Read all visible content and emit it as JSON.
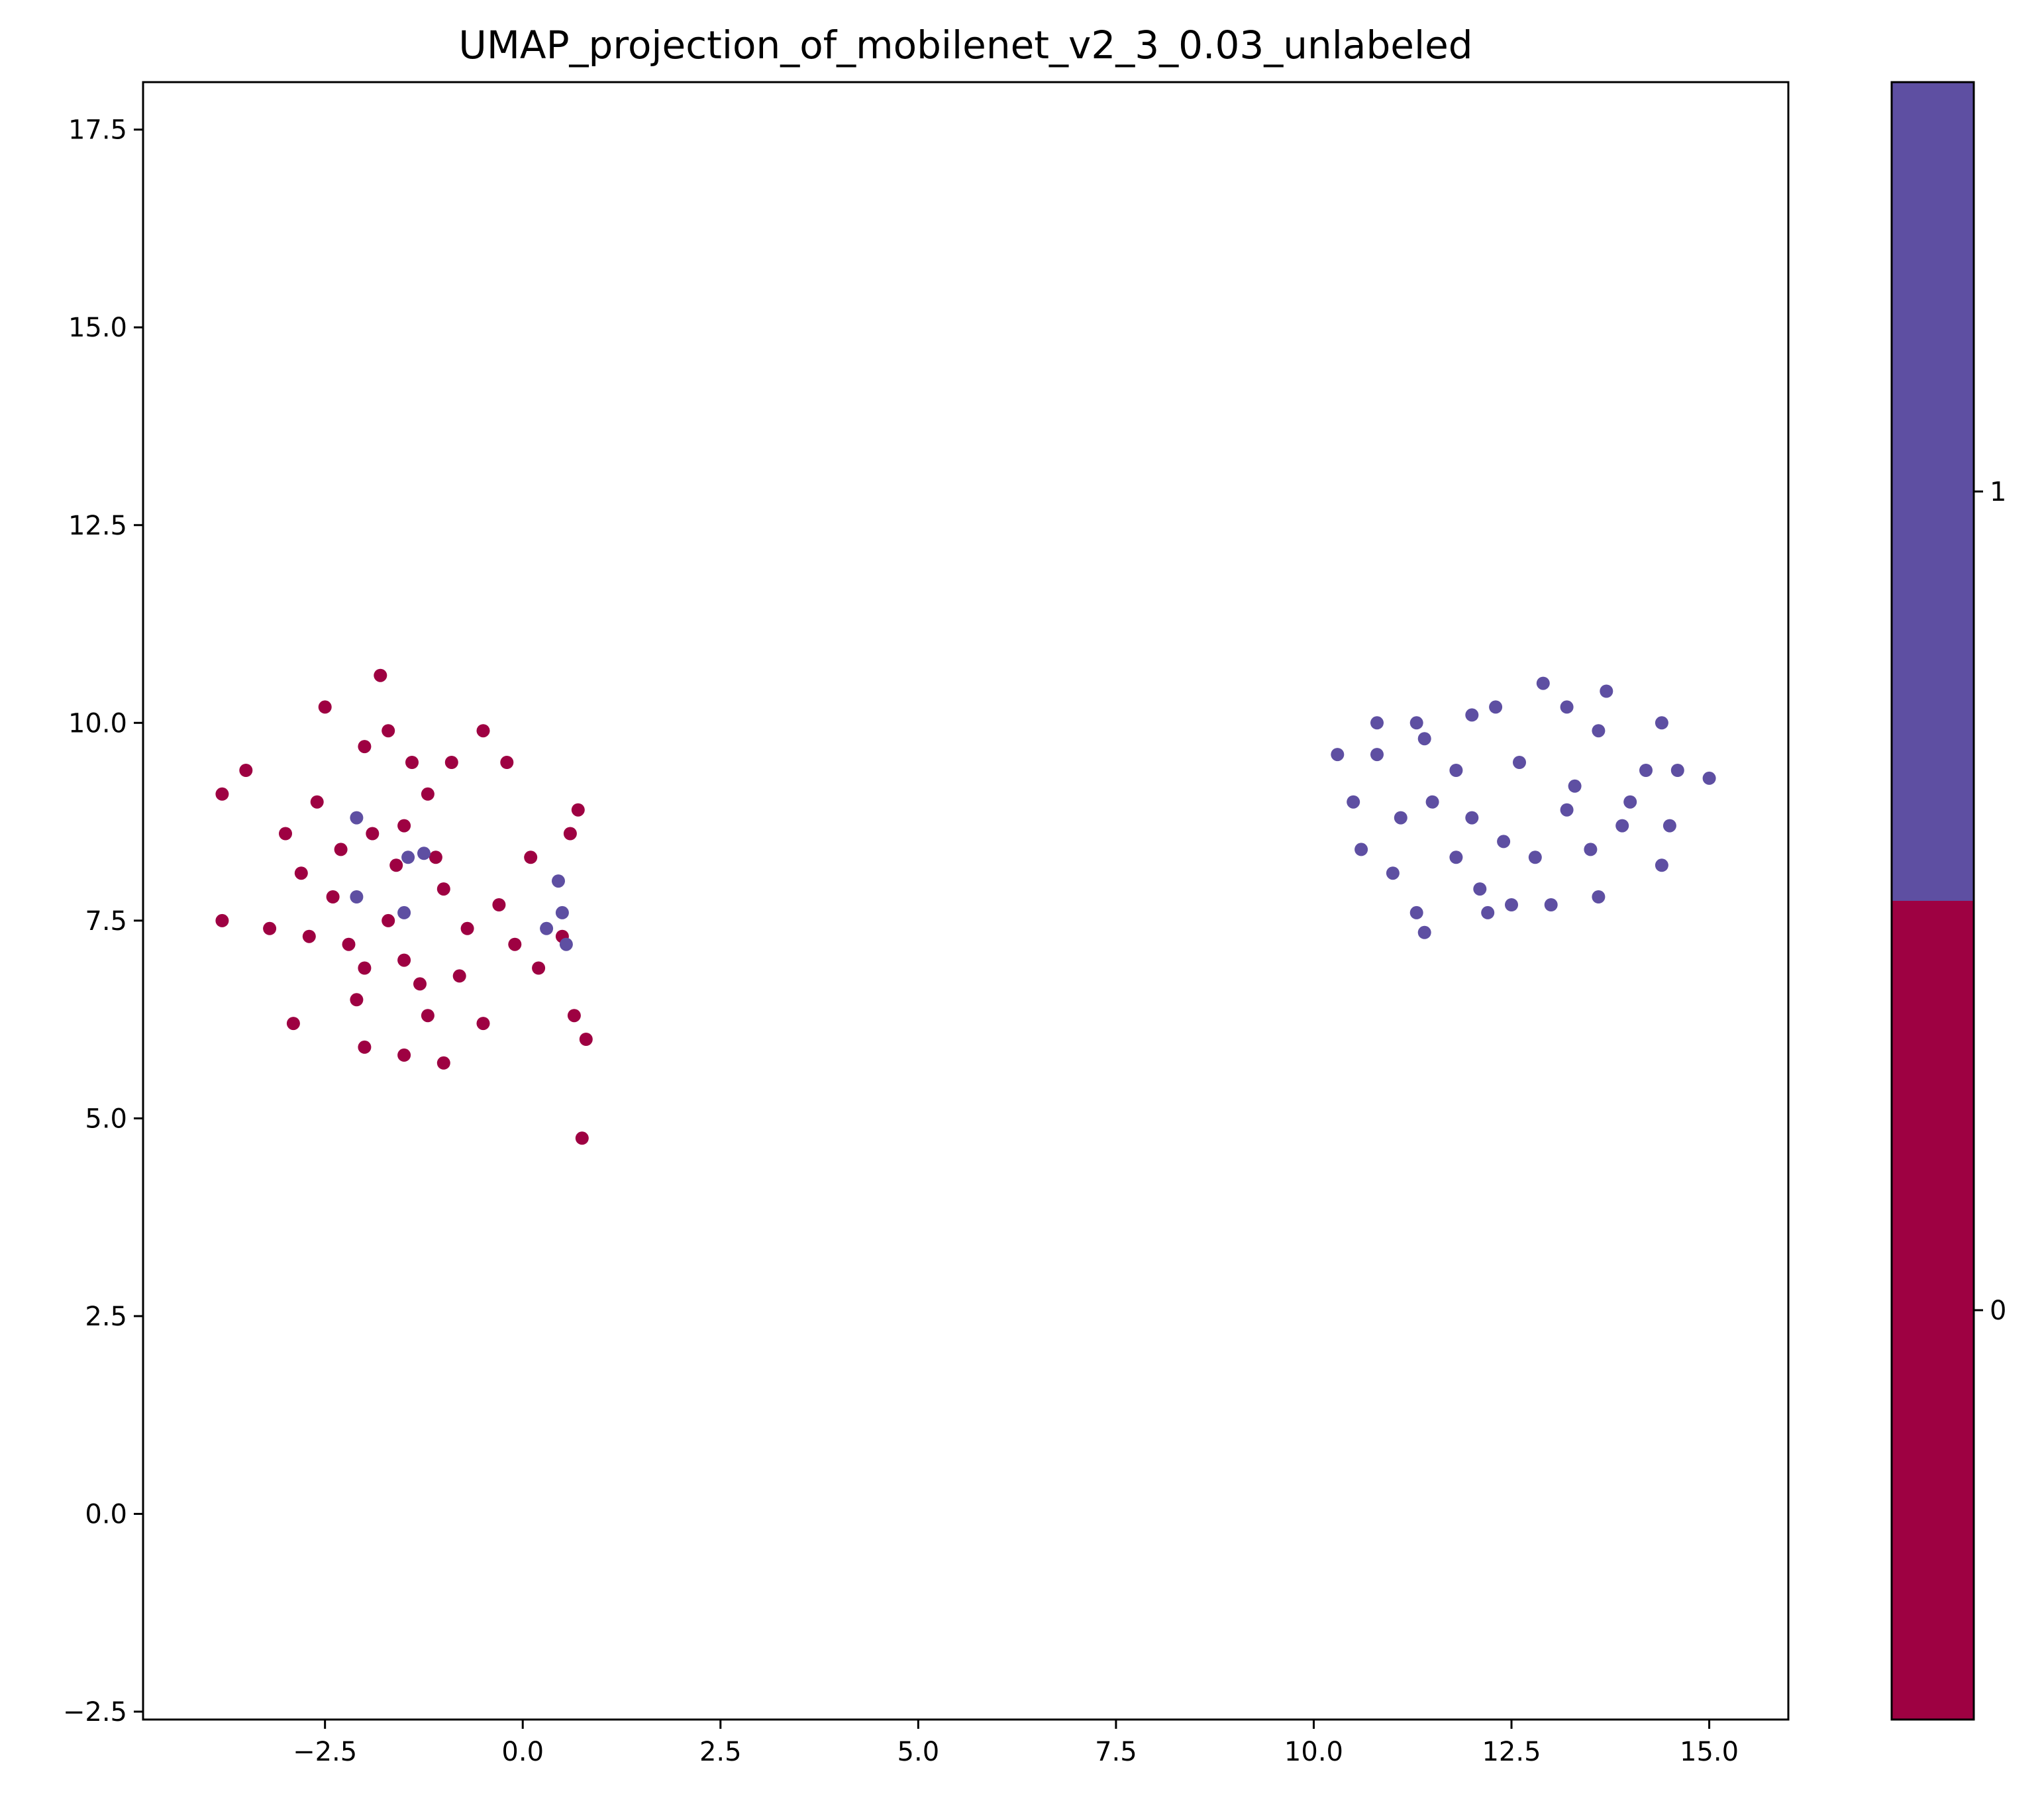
{
  "chart_data": {
    "type": "scatter",
    "title": "UMAP_projection_of_mobilenet_v2_3_0.03_unlabeled",
    "xlabel": "",
    "ylabel": "",
    "xlim": [
      -4.8,
      16.0
    ],
    "ylim": [
      -2.6,
      18.1
    ],
    "xticks": [
      -2.5,
      0.0,
      2.5,
      5.0,
      7.5,
      10.0,
      12.5,
      15.0
    ],
    "xtick_labels": [
      "−2.5",
      "0.0",
      "2.5",
      "5.0",
      "7.5",
      "10.0",
      "12.5",
      "15.0"
    ],
    "yticks": [
      -2.5,
      0.0,
      2.5,
      5.0,
      7.5,
      10.0,
      12.5,
      15.0,
      17.5
    ],
    "ytick_labels": [
      "−2.5",
      "0.0",
      "2.5",
      "5.0",
      "7.5",
      "10.0",
      "12.5",
      "15.0",
      "17.5"
    ],
    "grid": false,
    "legend": "none",
    "colorbar": {
      "type": "discrete",
      "ticks": [
        {
          "label": "0",
          "color": "#9e0142"
        },
        {
          "label": "1",
          "color": "#5e4fa2"
        }
      ]
    },
    "series": [
      {
        "class": 0,
        "color": "#9e0142",
        "points": [
          [
            -2.2,
            7.2
          ],
          [
            -2.0,
            6.9
          ],
          [
            -1.7,
            7.5
          ],
          [
            -1.5,
            7.0
          ],
          [
            -1.9,
            8.6
          ],
          [
            -1.6,
            8.2
          ],
          [
            -2.4,
            7.8
          ],
          [
            -1.3,
            6.7
          ],
          [
            -2.7,
            7.3
          ],
          [
            -1.0,
            7.9
          ],
          [
            -2.0,
            9.7
          ],
          [
            -1.8,
            10.6
          ],
          [
            -2.5,
            10.2
          ],
          [
            -3.8,
            9.1
          ],
          [
            -3.5,
            9.4
          ],
          [
            -3.8,
            7.5
          ],
          [
            -3.2,
            7.4
          ],
          [
            -2.9,
            6.2
          ],
          [
            -2.0,
            5.9
          ],
          [
            -1.5,
            5.8
          ],
          [
            -1.0,
            5.7
          ],
          [
            -0.5,
            6.2
          ],
          [
            0.2,
            6.9
          ],
          [
            0.5,
            7.3
          ],
          [
            0.7,
            8.9
          ],
          [
            0.6,
            8.6
          ],
          [
            0.1,
            8.3
          ],
          [
            -0.2,
            9.5
          ],
          [
            -0.5,
            9.9
          ],
          [
            -0.9,
            9.5
          ],
          [
            -1.2,
            9.1
          ],
          [
            0.65,
            6.3
          ],
          [
            0.8,
            6.0
          ],
          [
            0.75,
            4.75
          ],
          [
            -1.5,
            8.7
          ],
          [
            -2.3,
            8.4
          ],
          [
            -1.1,
            8.3
          ],
          [
            -0.7,
            7.4
          ],
          [
            -0.3,
            7.7
          ],
          [
            -0.1,
            7.2
          ],
          [
            -2.8,
            8.1
          ],
          [
            -3.0,
            8.6
          ],
          [
            -2.6,
            9.0
          ],
          [
            -1.7,
            9.9
          ],
          [
            -1.4,
            9.5
          ],
          [
            -2.1,
            6.5
          ],
          [
            -1.2,
            6.3
          ],
          [
            -0.8,
            6.8
          ]
        ]
      },
      {
        "class": 1,
        "color": "#5e4fa2",
        "points": [
          [
            11.5,
            9.0
          ],
          [
            12.0,
            8.8
          ],
          [
            11.8,
            8.3
          ],
          [
            12.6,
            9.5
          ],
          [
            13.3,
            9.2
          ],
          [
            13.9,
            8.7
          ],
          [
            14.2,
            9.4
          ],
          [
            13.6,
            9.9
          ],
          [
            12.9,
            10.5
          ],
          [
            12.3,
            10.2
          ],
          [
            11.4,
            9.8
          ],
          [
            10.8,
            9.6
          ],
          [
            10.3,
            9.6
          ],
          [
            10.6,
            8.4
          ],
          [
            11.0,
            8.1
          ],
          [
            11.3,
            7.6
          ],
          [
            11.4,
            7.35
          ],
          [
            12.2,
            7.6
          ],
          [
            12.5,
            7.7
          ],
          [
            13.0,
            7.7
          ],
          [
            13.6,
            7.8
          ],
          [
            14.4,
            8.2
          ],
          [
            14.5,
            8.7
          ],
          [
            14.6,
            9.4
          ],
          [
            15.0,
            9.3
          ],
          [
            14.4,
            10.0
          ],
          [
            13.7,
            10.4
          ],
          [
            13.2,
            10.2
          ],
          [
            12.0,
            10.1
          ],
          [
            11.3,
            10.0
          ],
          [
            10.8,
            10.0
          ],
          [
            10.5,
            9.0
          ],
          [
            12.8,
            8.3
          ],
          [
            13.2,
            8.9
          ],
          [
            11.8,
            9.4
          ],
          [
            12.4,
            8.5
          ],
          [
            13.5,
            8.4
          ],
          [
            12.1,
            7.9
          ],
          [
            14.0,
            9.0
          ],
          [
            11.1,
            8.8
          ],
          [
            -2.1,
            8.8
          ],
          [
            -1.45,
            8.3
          ],
          [
            -1.25,
            8.35
          ],
          [
            -2.1,
            7.8
          ],
          [
            -1.5,
            7.6
          ],
          [
            0.45,
            8.0
          ],
          [
            0.5,
            7.6
          ],
          [
            0.3,
            7.4
          ],
          [
            0.55,
            7.2
          ]
        ]
      }
    ]
  }
}
